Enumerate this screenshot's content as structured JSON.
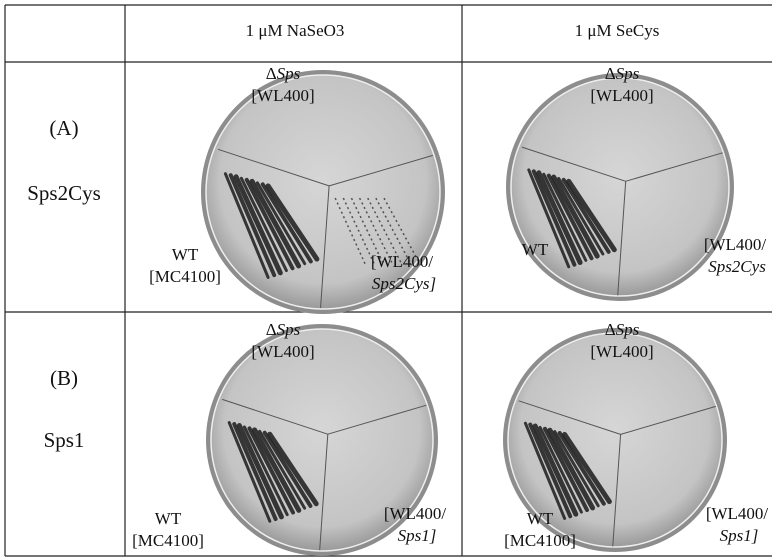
{
  "table": {
    "columns": [
      "1 μM NaSeO3",
      "1 μM SeCys"
    ],
    "rows": [
      {
        "label": "(A)",
        "name": "Sps2Cys",
        "plates": [
          {
            "top_symbol": "Δ",
            "top_strain": "Sps",
            "top_code": "[WL400]",
            "left": "WT",
            "left_code": "[MC4100]",
            "right": "[WL400/",
            "right_strain": "Sps2Cys]"
          },
          {
            "top_symbol": "Δ",
            "top_strain": "Sps",
            "top_code": "[WL400]",
            "left": "WT",
            "right": "[WL400/",
            "right_strain": "Sps2Cys"
          }
        ]
      },
      {
        "label": "(B)",
        "name": "Sps1",
        "plates": [
          {
            "top_symbol": "Δ",
            "top_strain": "Sps",
            "top_code": "[WL400]",
            "left": "WT",
            "left_code": "[MC4100]",
            "right": "[WL400/",
            "right_strain": "Sps1]"
          },
          {
            "top_symbol": "Δ",
            "top_strain": "Sps",
            "top_code": "[WL400]",
            "left": "WT",
            "left_code": "[MC4100]",
            "right": "[WL400/",
            "right_strain": "Sps1]"
          }
        ]
      }
    ]
  }
}
